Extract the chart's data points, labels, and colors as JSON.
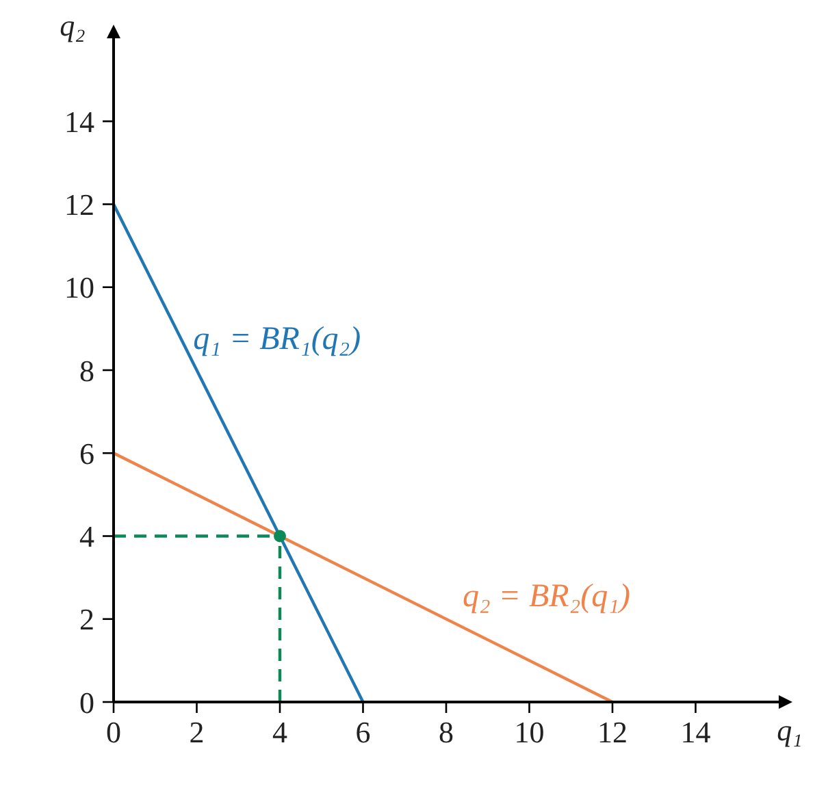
{
  "chart_data": {
    "type": "line",
    "xlabel": "q₁",
    "ylabel": "q₂",
    "xlim": [
      0,
      16
    ],
    "ylim": [
      0,
      16
    ],
    "xticks": [
      0,
      2,
      4,
      6,
      8,
      10,
      12,
      14
    ],
    "yticks": [
      0,
      2,
      4,
      6,
      8,
      10,
      12,
      14
    ],
    "grid": false,
    "legend": false,
    "series": [
      {
        "name": "q₁ = BR₁(q₂)",
        "color": "#2176b4",
        "x": [
          0,
          6
        ],
        "values": [
          12,
          0
        ]
      },
      {
        "name": "q₂ = BR₂(q₁)",
        "color": "#f0834a",
        "x": [
          0,
          12
        ],
        "values": [
          6,
          0
        ]
      },
      {
        "color": "#0b8a55",
        "line_style": "dashed",
        "x": [
          0,
          4
        ],
        "values": [
          4,
          4
        ]
      },
      {
        "color": "#0b8a55",
        "line_style": "dashed",
        "x": [
          4,
          4
        ],
        "values": [
          0,
          4
        ]
      },
      {
        "type": "scatter",
        "color": "#0b8a55",
        "marker": "circle",
        "x": [
          4
        ],
        "values": [
          4
        ]
      }
    ]
  }
}
